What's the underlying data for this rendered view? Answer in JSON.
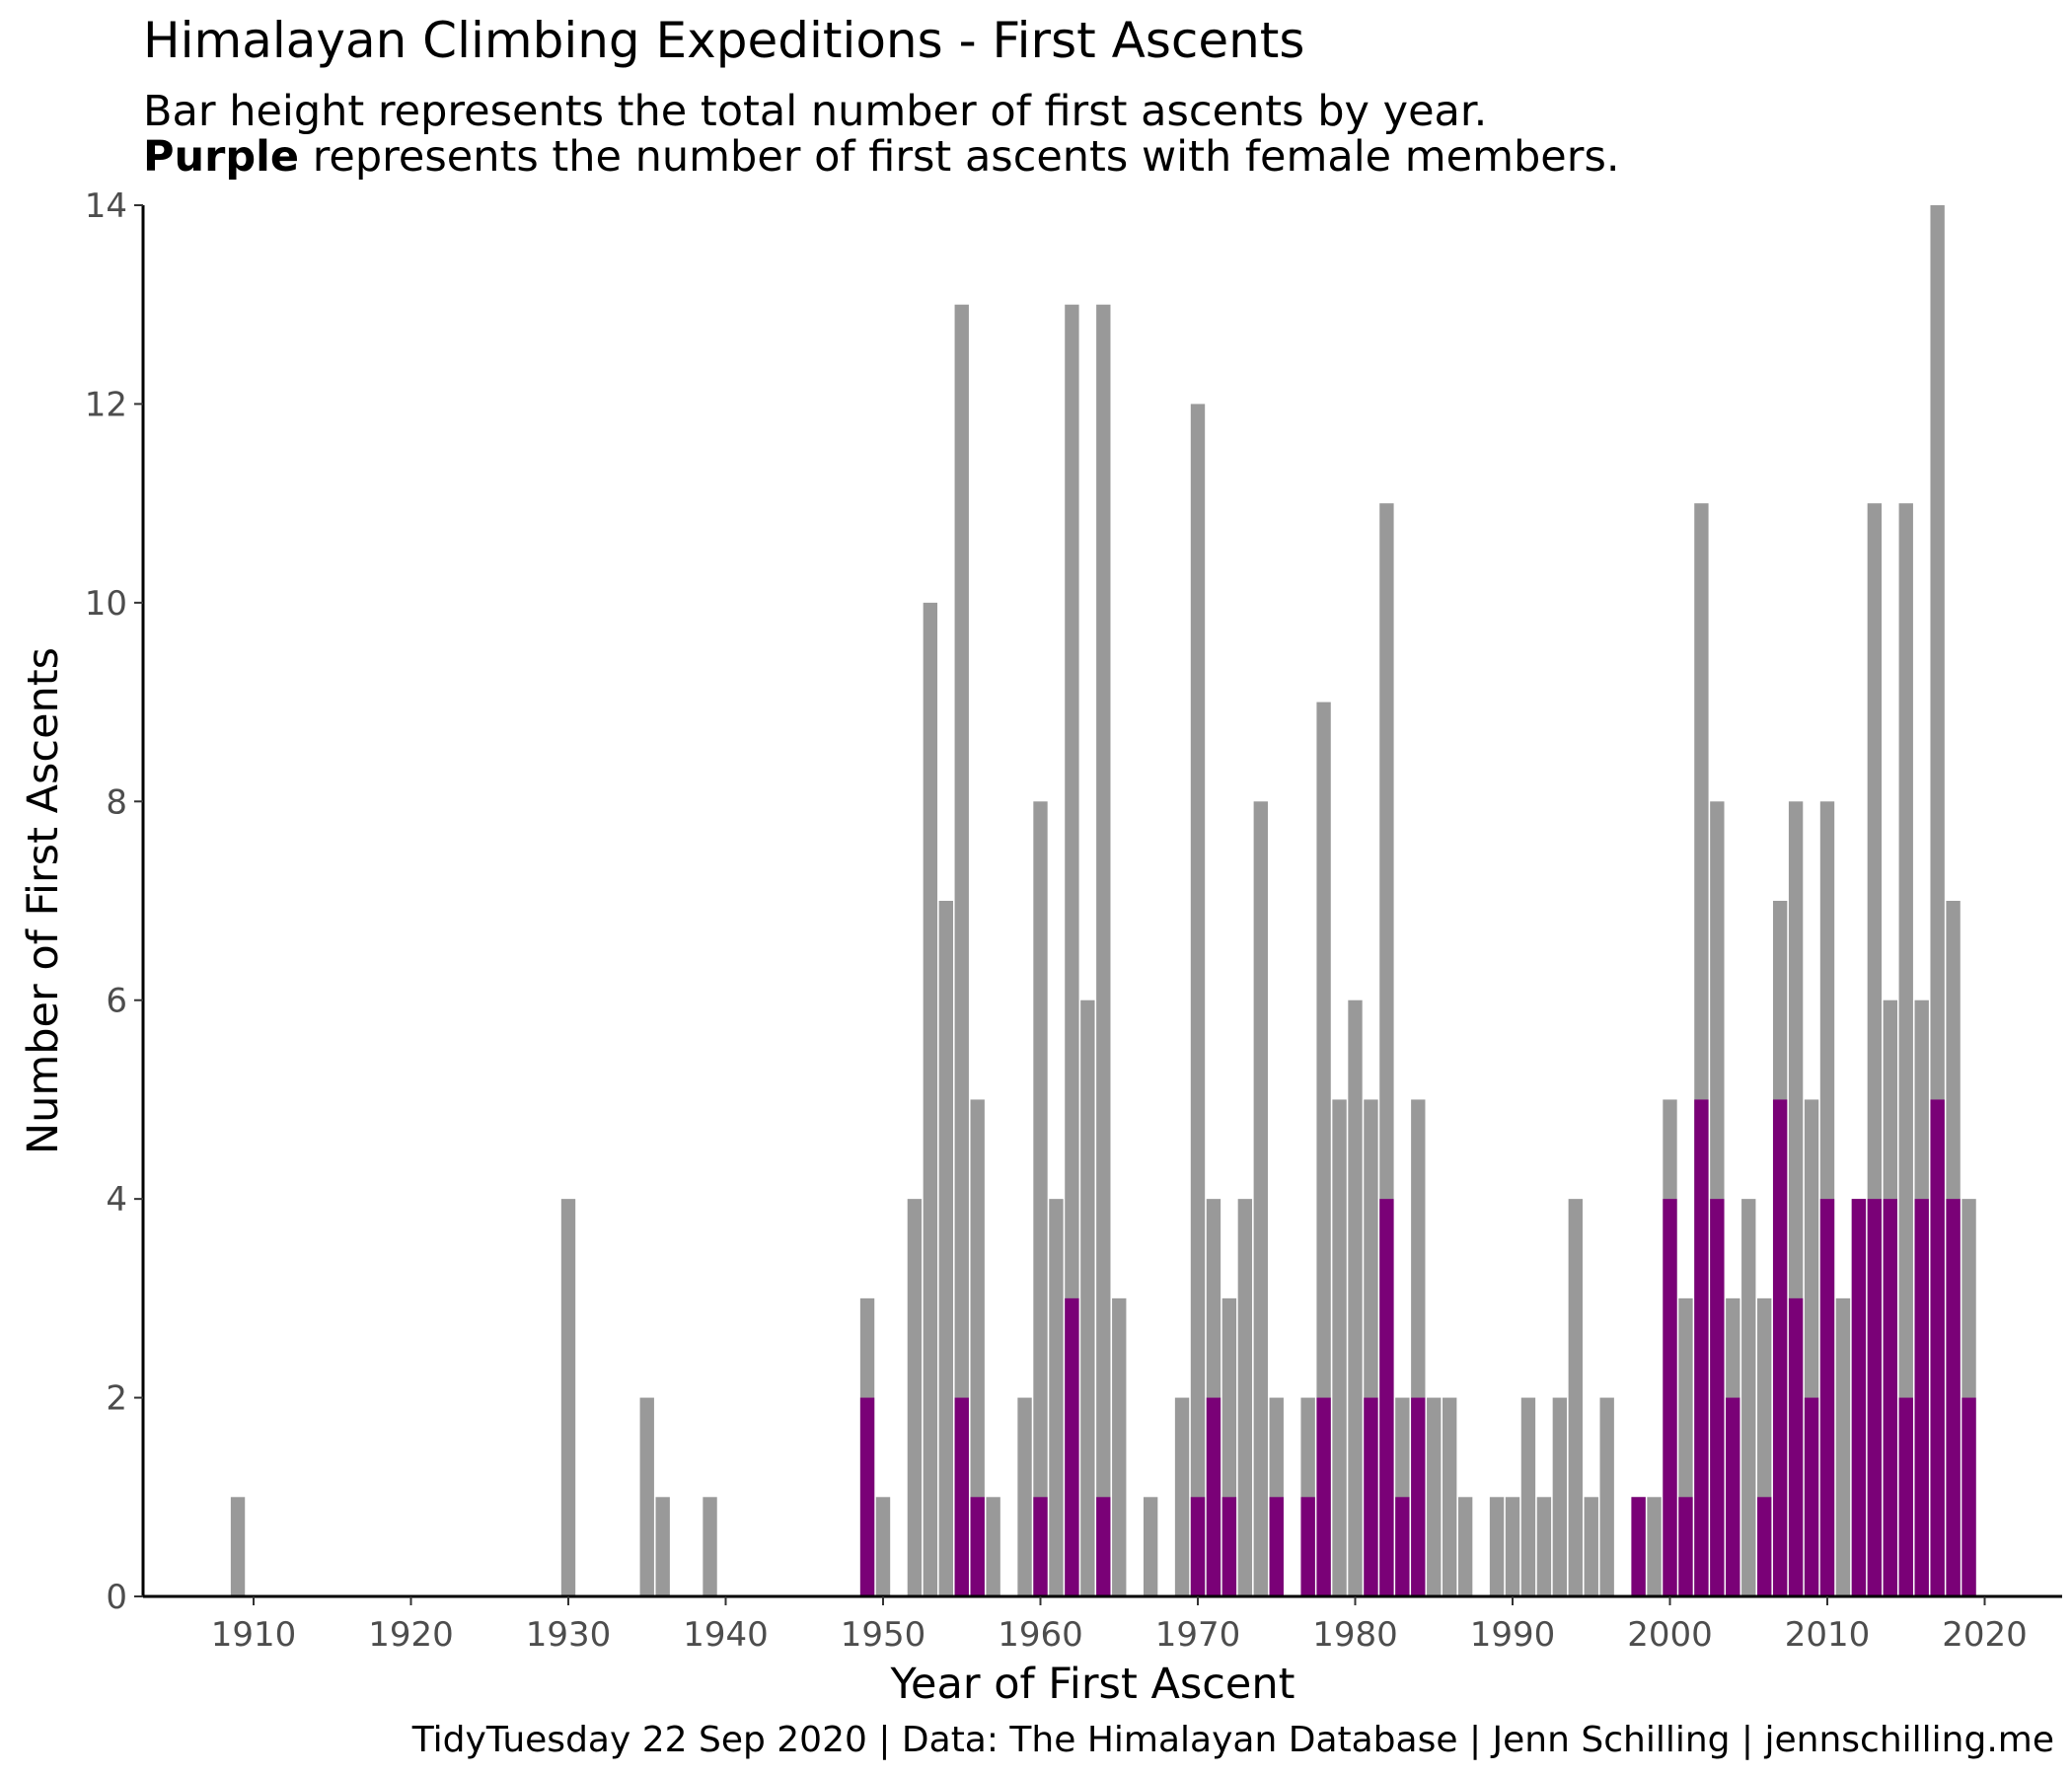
{
  "chart_data": {
    "type": "bar",
    "title": "Himalayan Climbing Expeditions - First Ascents",
    "subtitle_line1": "Bar height represents the total number of first ascents by year.",
    "subtitle_highlight": "Purple",
    "subtitle_line2_rest": " represents the number of first ascents with female members.",
    "caption": "TidyTuesday 22 Sep 2020 | Data: The Himalayan Database | Jenn Schilling | jennschilling.me",
    "xlabel": "Year of First Ascent",
    "ylabel": "Number of First Ascents",
    "xlim": [
      1902,
      2025
    ],
    "ylim": [
      0,
      14
    ],
    "x_ticks": [
      1910,
      1920,
      1930,
      1940,
      1950,
      1960,
      1970,
      1980,
      1990,
      2000,
      2010,
      2020
    ],
    "y_ticks": [
      0,
      2,
      4,
      6,
      8,
      10,
      12,
      14
    ],
    "grid": false,
    "colors": {
      "total": "#999999",
      "female": "#7a0177"
    },
    "series": [
      {
        "name": "total",
        "points": [
          [
            1909,
            1
          ],
          [
            1930,
            4
          ],
          [
            1935,
            2
          ],
          [
            1936,
            1
          ],
          [
            1939,
            1
          ],
          [
            1949,
            3
          ],
          [
            1950,
            1
          ],
          [
            1952,
            4
          ],
          [
            1953,
            10
          ],
          [
            1954,
            7
          ],
          [
            1955,
            13
          ],
          [
            1956,
            5
          ],
          [
            1957,
            1
          ],
          [
            1959,
            2
          ],
          [
            1960,
            8
          ],
          [
            1961,
            4
          ],
          [
            1962,
            13
          ],
          [
            1963,
            6
          ],
          [
            1964,
            13
          ],
          [
            1965,
            3
          ],
          [
            1967,
            1
          ],
          [
            1969,
            2
          ],
          [
            1970,
            12
          ],
          [
            1971,
            4
          ],
          [
            1972,
            3
          ],
          [
            1973,
            4
          ],
          [
            1974,
            8
          ],
          [
            1975,
            2
          ],
          [
            1977,
            2
          ],
          [
            1978,
            9
          ],
          [
            1979,
            5
          ],
          [
            1980,
            6
          ],
          [
            1981,
            5
          ],
          [
            1982,
            11
          ],
          [
            1983,
            2
          ],
          [
            1984,
            5
          ],
          [
            1985,
            2
          ],
          [
            1986,
            2
          ],
          [
            1987,
            1
          ],
          [
            1989,
            1
          ],
          [
            1990,
            1
          ],
          [
            1991,
            2
          ],
          [
            1992,
            1
          ],
          [
            1993,
            2
          ],
          [
            1994,
            4
          ],
          [
            1995,
            1
          ],
          [
            1996,
            2
          ],
          [
            1998,
            1
          ],
          [
            1999,
            1
          ],
          [
            2000,
            5
          ],
          [
            2001,
            3
          ],
          [
            2002,
            11
          ],
          [
            2003,
            8
          ],
          [
            2004,
            3
          ],
          [
            2005,
            4
          ],
          [
            2006,
            3
          ],
          [
            2007,
            7
          ],
          [
            2008,
            8
          ],
          [
            2009,
            5
          ],
          [
            2010,
            8
          ],
          [
            2011,
            3
          ],
          [
            2012,
            4
          ],
          [
            2013,
            11
          ],
          [
            2014,
            6
          ],
          [
            2015,
            11
          ],
          [
            2016,
            6
          ],
          [
            2017,
            14
          ],
          [
            2018,
            7
          ],
          [
            2019,
            4
          ]
        ]
      },
      {
        "name": "female",
        "points": [
          [
            1949,
            2
          ],
          [
            1955,
            2
          ],
          [
            1956,
            1
          ],
          [
            1960,
            1
          ],
          [
            1962,
            3
          ],
          [
            1964,
            1
          ],
          [
            1970,
            1
          ],
          [
            1971,
            2
          ],
          [
            1972,
            1
          ],
          [
            1975,
            1
          ],
          [
            1977,
            1
          ],
          [
            1978,
            2
          ],
          [
            1981,
            2
          ],
          [
            1982,
            4
          ],
          [
            1983,
            1
          ],
          [
            1984,
            2
          ],
          [
            1998,
            1
          ],
          [
            2000,
            4
          ],
          [
            2001,
            1
          ],
          [
            2002,
            5
          ],
          [
            2003,
            4
          ],
          [
            2004,
            2
          ],
          [
            2006,
            1
          ],
          [
            2007,
            5
          ],
          [
            2008,
            3
          ],
          [
            2009,
            2
          ],
          [
            2010,
            4
          ],
          [
            2012,
            4
          ],
          [
            2013,
            4
          ],
          [
            2014,
            4
          ],
          [
            2015,
            2
          ],
          [
            2016,
            4
          ],
          [
            2017,
            5
          ],
          [
            2018,
            4
          ],
          [
            2019,
            2
          ]
        ]
      }
    ]
  }
}
